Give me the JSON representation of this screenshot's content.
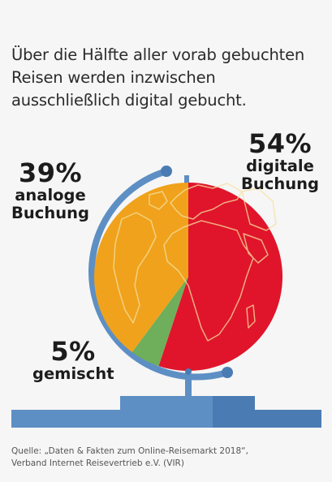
{
  "headline": {
    "line1": "Über die Hälfte aller vorab gebuchten",
    "line2": "Reisen werden inzwischen",
    "line3": "ausschließlich digital gebucht."
  },
  "chart_data": {
    "type": "pie",
    "series": [
      {
        "label": "digitale Buchung",
        "pct_text": "54%",
        "line1": "digitale",
        "line2": "Buchung",
        "value": 54,
        "color": "#e0152b"
      },
      {
        "label": "gemischt",
        "pct_text": "5%",
        "line1": "gemischt",
        "line2": "",
        "value": 5,
        "color": "#6fae5a"
      },
      {
        "label": "analoge Buchung",
        "pct_text": "39%",
        "line1": "analoge",
        "line2": "Buchung",
        "value": 39,
        "color": "#f0a21c"
      }
    ]
  },
  "source": {
    "line1": "Quelle: „Daten & Fakten zum Online-Reisemarkt 2018“,",
    "line2": "Verband Internet Reisevertrieb e.V. (VIR)"
  },
  "colors": {
    "stand": "#5d8fc4",
    "stand_dark": "#4a7cb3",
    "map_outline": "#f5e0a0",
    "background": "#f6f6f6"
  }
}
